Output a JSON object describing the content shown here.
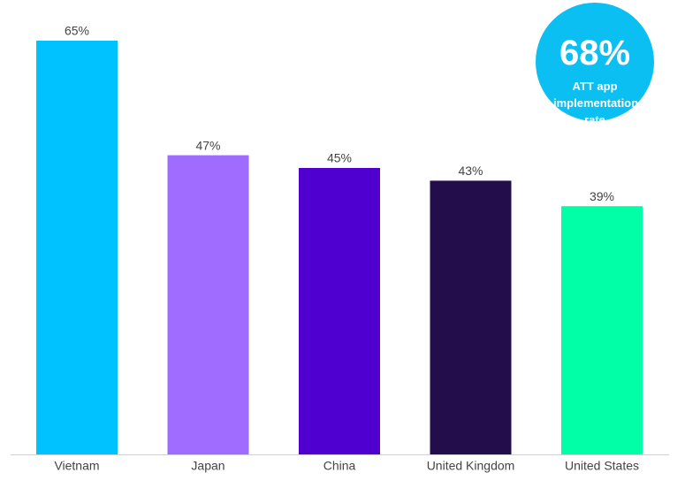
{
  "chart_data": {
    "type": "bar",
    "categories": [
      "Vietnam",
      "Japan",
      "China",
      "United Kingdom",
      "United States"
    ],
    "values": [
      65,
      47,
      45,
      43,
      39
    ],
    "value_labels": [
      "65%",
      "47%",
      "45%",
      "43%",
      "39%"
    ],
    "colors": [
      "#00c2ff",
      "#a06bff",
      "#4f00d1",
      "#240d4b",
      "#00ffa6"
    ],
    "annotations": [
      "68%",
      "ATT app implementation rate"
    ],
    "annotation_color": "#0bbff3"
  }
}
